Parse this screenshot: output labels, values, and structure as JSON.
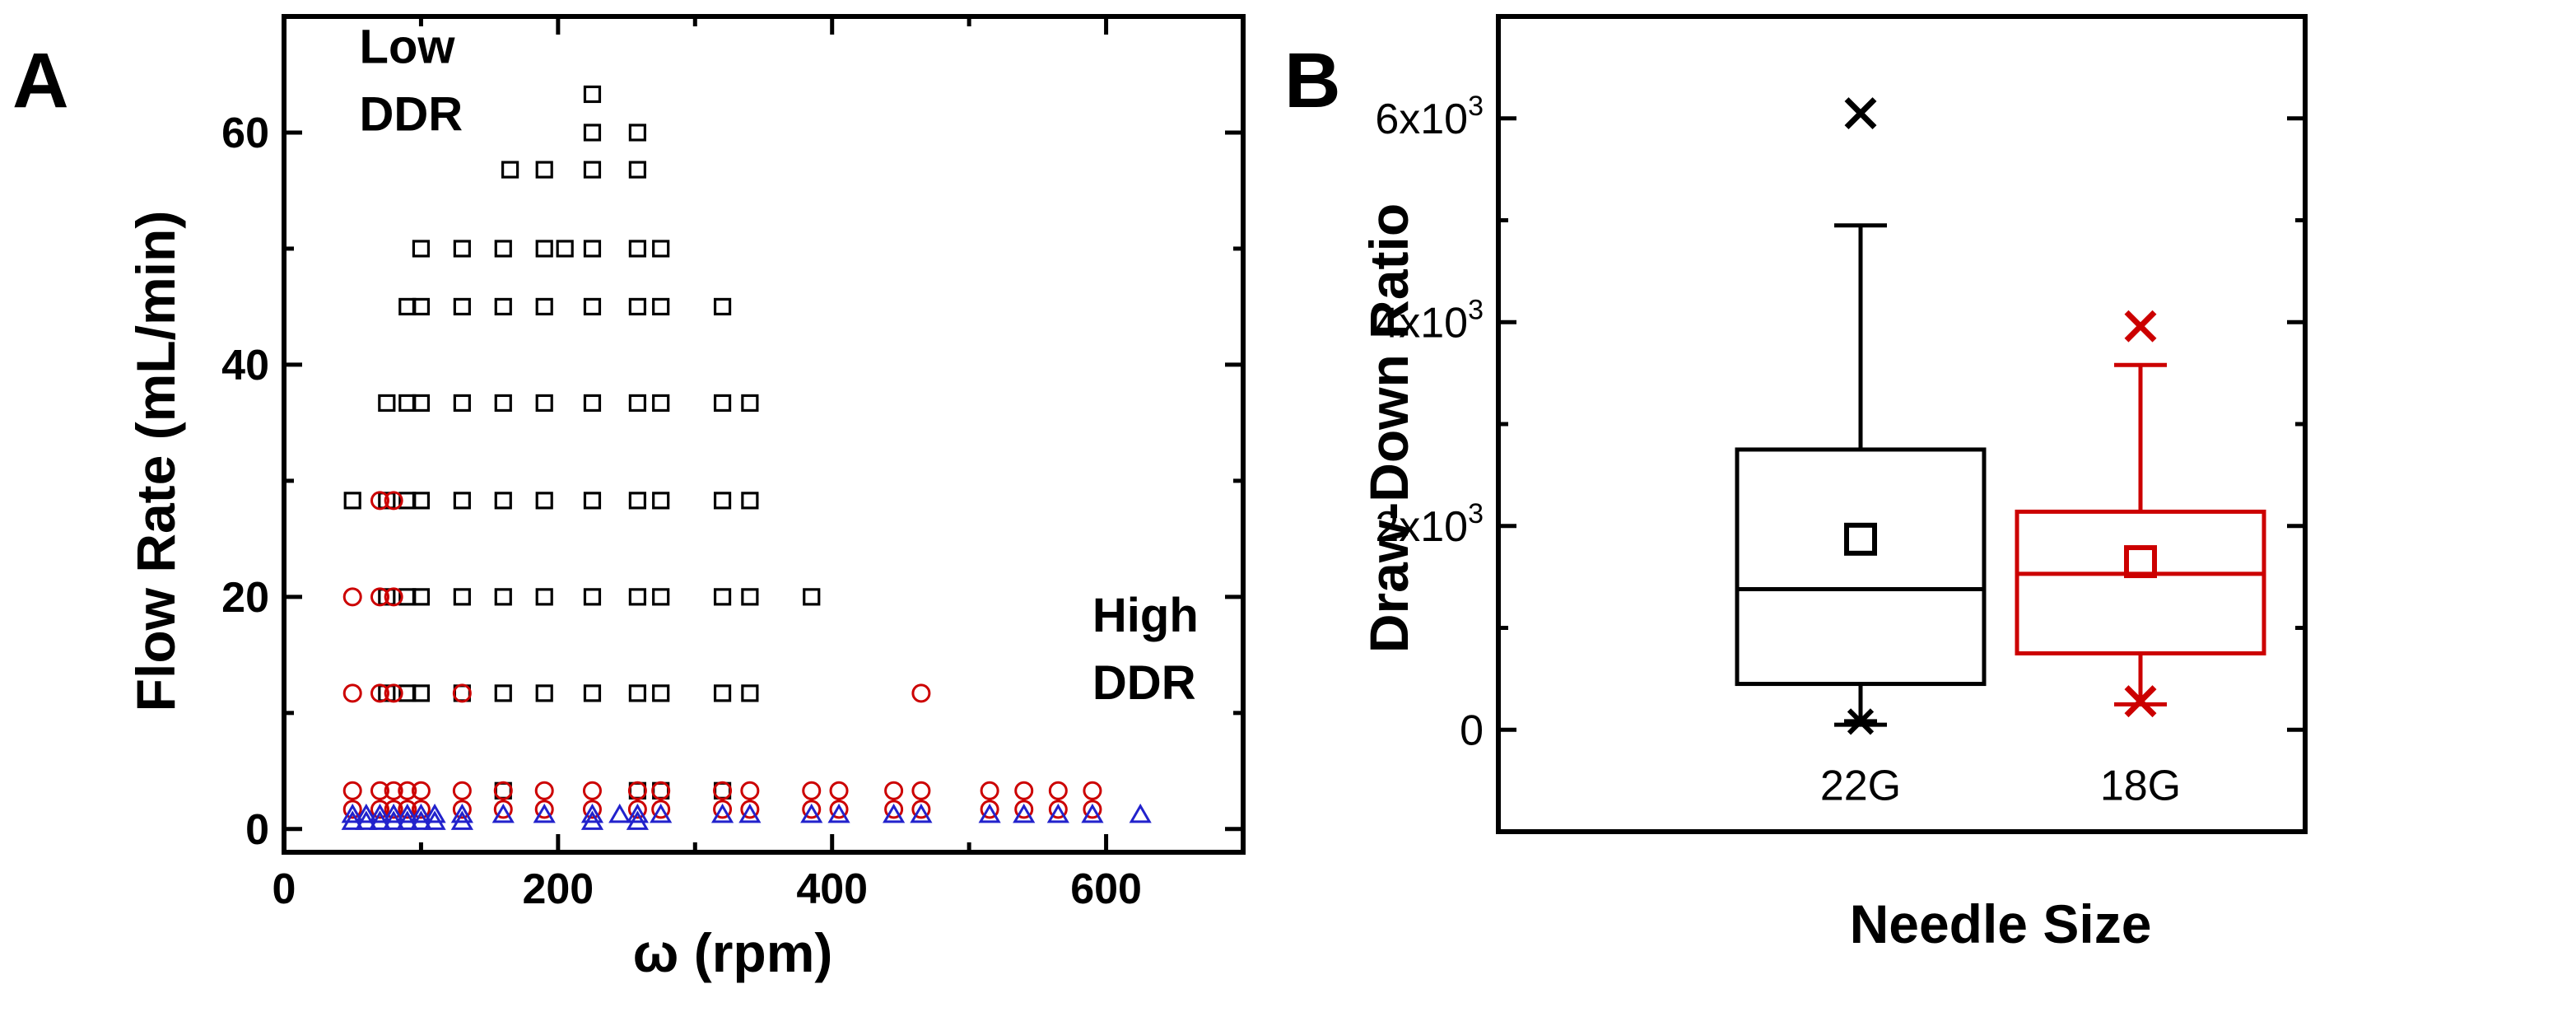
{
  "chart_data": [
    {
      "panel_label": "A",
      "type": "scatter",
      "xlabel": "ω (rpm)",
      "ylabel": "Flow Rate (mL/min)",
      "xlim": [
        0,
        700
      ],
      "ylim": [
        -2,
        70
      ],
      "xticks": [
        0,
        200,
        400,
        600
      ],
      "yticks": [
        0,
        20,
        40,
        60
      ],
      "annotations": [
        {
          "id": "low",
          "lines": [
            "Low",
            "DDR"
          ],
          "x": 55,
          "y": 66
        },
        {
          "id": "high",
          "lines": [
            "High",
            "DDR"
          ],
          "x": 590,
          "y": 17
        }
      ],
      "series": [
        {
          "marker": "square",
          "color": "#000000",
          "points": [
            [
              225,
              63.3
            ],
            [
              225,
              60
            ],
            [
              258,
              60
            ],
            [
              165,
              56.8
            ],
            [
              190,
              56.8
            ],
            [
              225,
              56.8
            ],
            [
              258,
              56.8
            ],
            [
              100,
              50
            ],
            [
              130,
              50
            ],
            [
              160,
              50
            ],
            [
              190,
              50
            ],
            [
              205,
              50
            ],
            [
              225,
              50
            ],
            [
              258,
              50
            ],
            [
              275,
              50
            ],
            [
              90,
              45
            ],
            [
              100,
              45
            ],
            [
              130,
              45
            ],
            [
              160,
              45
            ],
            [
              190,
              45
            ],
            [
              225,
              45
            ],
            [
              258,
              45
            ],
            [
              275,
              45
            ],
            [
              320,
              45
            ],
            [
              75,
              36.7
            ],
            [
              90,
              36.7
            ],
            [
              100,
              36.7
            ],
            [
              130,
              36.7
            ],
            [
              160,
              36.7
            ],
            [
              190,
              36.7
            ],
            [
              225,
              36.7
            ],
            [
              258,
              36.7
            ],
            [
              275,
              36.7
            ],
            [
              320,
              36.7
            ],
            [
              340,
              36.7
            ],
            [
              50,
              28.3
            ],
            [
              75,
              28.3
            ],
            [
              90,
              28.3
            ],
            [
              100,
              28.3
            ],
            [
              130,
              28.3
            ],
            [
              160,
              28.3
            ],
            [
              190,
              28.3
            ],
            [
              225,
              28.3
            ],
            [
              258,
              28.3
            ],
            [
              275,
              28.3
            ],
            [
              320,
              28.3
            ],
            [
              340,
              28.3
            ],
            [
              75,
              20
            ],
            [
              90,
              20
            ],
            [
              100,
              20
            ],
            [
              130,
              20
            ],
            [
              160,
              20
            ],
            [
              190,
              20
            ],
            [
              225,
              20
            ],
            [
              258,
              20
            ],
            [
              275,
              20
            ],
            [
              320,
              20
            ],
            [
              340,
              20
            ],
            [
              385,
              20
            ],
            [
              75,
              11.7
            ],
            [
              90,
              11.7
            ],
            [
              100,
              11.7
            ],
            [
              130,
              11.7
            ],
            [
              160,
              11.7
            ],
            [
              190,
              11.7
            ],
            [
              225,
              11.7
            ],
            [
              258,
              11.7
            ],
            [
              275,
              11.7
            ],
            [
              320,
              11.7
            ],
            [
              340,
              11.7
            ],
            [
              160,
              3.3
            ],
            [
              258,
              3.3
            ],
            [
              275,
              3.3
            ],
            [
              320,
              3.3
            ]
          ]
        },
        {
          "marker": "circle",
          "color": "#cc0000",
          "points": [
            [
              70,
              28.3
            ],
            [
              80,
              28.3
            ],
            [
              50,
              20
            ],
            [
              70,
              20
            ],
            [
              80,
              20
            ],
            [
              50,
              11.7
            ],
            [
              70,
              11.7
            ],
            [
              80,
              11.7
            ],
            [
              130,
              11.7
            ],
            [
              465,
              11.7
            ],
            [
              50,
              3.3
            ],
            [
              70,
              3.3
            ],
            [
              80,
              3.3
            ],
            [
              90,
              3.3
            ],
            [
              100,
              3.3
            ],
            [
              130,
              3.3
            ],
            [
              160,
              3.3
            ],
            [
              190,
              3.3
            ],
            [
              225,
              3.3
            ],
            [
              258,
              3.3
            ],
            [
              275,
              3.3
            ],
            [
              320,
              3.3
            ],
            [
              340,
              3.3
            ],
            [
              385,
              3.3
            ],
            [
              405,
              3.3
            ],
            [
              445,
              3.3
            ],
            [
              465,
              3.3
            ],
            [
              515,
              3.3
            ],
            [
              540,
              3.3
            ],
            [
              565,
              3.3
            ],
            [
              590,
              3.3
            ],
            [
              50,
              1.7
            ],
            [
              70,
              1.7
            ],
            [
              80,
              1.7
            ],
            [
              90,
              1.7
            ],
            [
              100,
              1.7
            ],
            [
              130,
              1.7
            ],
            [
              160,
              1.7
            ],
            [
              190,
              1.7
            ],
            [
              225,
              1.7
            ],
            [
              258,
              1.7
            ],
            [
              275,
              1.7
            ],
            [
              320,
              1.7
            ],
            [
              340,
              1.7
            ],
            [
              385,
              1.7
            ],
            [
              405,
              1.7
            ],
            [
              445,
              1.7
            ],
            [
              465,
              1.7
            ],
            [
              515,
              1.7
            ],
            [
              540,
              1.7
            ],
            [
              565,
              1.7
            ],
            [
              590,
              1.7
            ]
          ]
        },
        {
          "marker": "triangle",
          "color": "#2222cc",
          "points": [
            [
              50,
              1.2
            ],
            [
              60,
              1.2
            ],
            [
              70,
              1.2
            ],
            [
              80,
              1.2
            ],
            [
              90,
              1.2
            ],
            [
              100,
              1.2
            ],
            [
              110,
              1.2
            ],
            [
              130,
              1.2
            ],
            [
              160,
              1.2
            ],
            [
              190,
              1.2
            ],
            [
              225,
              1.2
            ],
            [
              245,
              1.2
            ],
            [
              258,
              1.2
            ],
            [
              275,
              1.2
            ],
            [
              320,
              1.2
            ],
            [
              340,
              1.2
            ],
            [
              385,
              1.2
            ],
            [
              405,
              1.2
            ],
            [
              445,
              1.2
            ],
            [
              465,
              1.2
            ],
            [
              515,
              1.2
            ],
            [
              540,
              1.2
            ],
            [
              565,
              1.2
            ],
            [
              590,
              1.2
            ],
            [
              625,
              1.2
            ],
            [
              50,
              0.6
            ],
            [
              60,
              0.6
            ],
            [
              70,
              0.6
            ],
            [
              80,
              0.6
            ],
            [
              90,
              0.6
            ],
            [
              100,
              0.6
            ],
            [
              110,
              0.6
            ],
            [
              130,
              0.6
            ],
            [
              225,
              0.6
            ],
            [
              258,
              0.6
            ]
          ]
        }
      ]
    },
    {
      "panel_label": "B",
      "type": "box",
      "xlabel": "Needle Size",
      "ylabel": "Draw-Down Ratio",
      "ylim": [
        -1000,
        7000
      ],
      "yticks": [
        {
          "value": 0,
          "label": "0"
        },
        {
          "value": 2000,
          "label": "2x10",
          "exp": "3"
        },
        {
          "value": 4000,
          "label": "4x10",
          "exp": "3"
        },
        {
          "value": 6000,
          "label": "6x10",
          "exp": "3"
        }
      ],
      "categories": [
        "22G",
        "18G"
      ],
      "boxes": [
        {
          "name": "22G",
          "color": "#000000",
          "whisker_low": 50,
          "q1": 450,
          "median": 1380,
          "q3": 2750,
          "whisker_high": 4950,
          "mean": 1870,
          "max_marker": 6050,
          "min_marker": 80
        },
        {
          "name": "18G",
          "color": "#cc0000",
          "whisker_low": 250,
          "q1": 750,
          "median": 1530,
          "q3": 2140,
          "whisker_high": 3580,
          "mean": 1650,
          "max_marker": 3960,
          "min_marker": 280
        }
      ]
    }
  ]
}
